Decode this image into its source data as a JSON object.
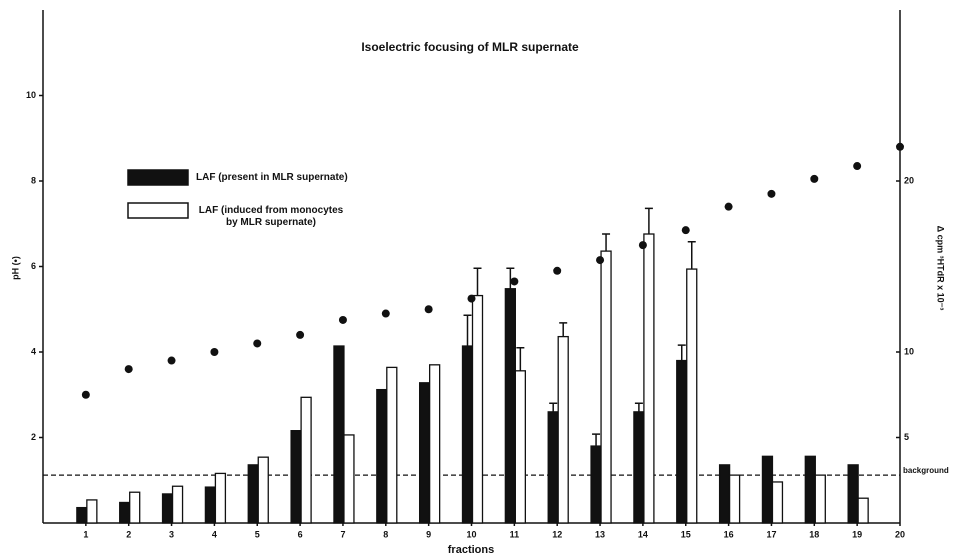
{
  "chart_data": {
    "type": "bar",
    "title": "Isoelectric focusing of MLR supernate",
    "xlabel": "fractions",
    "ylabel": "pH (•)",
    "y2label": "Δ cpm ³HTdR x 10⁻³",
    "x": [
      1,
      2,
      3,
      4,
      5,
      6,
      7,
      8,
      9,
      10,
      11,
      12,
      13,
      14,
      15,
      16,
      17,
      18,
      19,
      20
    ],
    "xlim": [
      0,
      20
    ],
    "xticks": [
      1,
      2,
      3,
      4,
      5,
      6,
      7,
      8,
      9,
      10,
      11,
      12,
      13,
      14,
      15,
      16,
      17,
      18,
      19,
      20
    ],
    "ylim": [
      0,
      12
    ],
    "yticks": [
      2,
      4,
      6,
      8,
      10
    ],
    "y2lim": [
      0,
      30
    ],
    "y2ticks": [
      5,
      10,
      20
    ],
    "series": [
      {
        "name": "LAF (present in MLR supernate)",
        "color": "#111111",
        "axis": "y2",
        "values": [
          0.9,
          1.2,
          1.7,
          2.1,
          3.4,
          5.4,
          10.35,
          7.8,
          8.2,
          10.35,
          13.7,
          6.5,
          4.5,
          6.5,
          9.5,
          3.4,
          3.9,
          3.9,
          3.4,
          null
        ],
        "errors": [
          null,
          null,
          null,
          null,
          null,
          null,
          null,
          null,
          null,
          1.8,
          1.2,
          0.5,
          0.7,
          0.5,
          0.9,
          null,
          null,
          null,
          null,
          null
        ]
      },
      {
        "name": "LAF (induced from monocytes by MLR supernate)",
        "color": "#ffffff",
        "axis": "y2",
        "values": [
          1.35,
          1.8,
          2.15,
          2.9,
          3.85,
          7.35,
          5.15,
          9.1,
          9.25,
          13.3,
          8.9,
          10.9,
          15.9,
          16.9,
          14.85,
          2.8,
          2.4,
          2.8,
          1.45,
          null
        ],
        "errors": [
          null,
          null,
          null,
          null,
          null,
          null,
          null,
          null,
          null,
          1.6,
          1.35,
          0.8,
          1.0,
          1.5,
          1.6,
          null,
          null,
          null,
          null,
          null
        ]
      }
    ],
    "ph_points": {
      "axis": "y",
      "color": "#111111",
      "values": [
        3.0,
        3.6,
        3.8,
        4.0,
        4.2,
        4.4,
        4.75,
        4.9,
        5.0,
        5.25,
        5.65,
        5.9,
        6.15,
        6.5,
        6.85,
        7.4,
        7.7,
        8.05,
        8.35,
        8.8
      ]
    },
    "reference_line": {
      "value": 2.8,
      "axis": "y2",
      "label": "background"
    }
  }
}
